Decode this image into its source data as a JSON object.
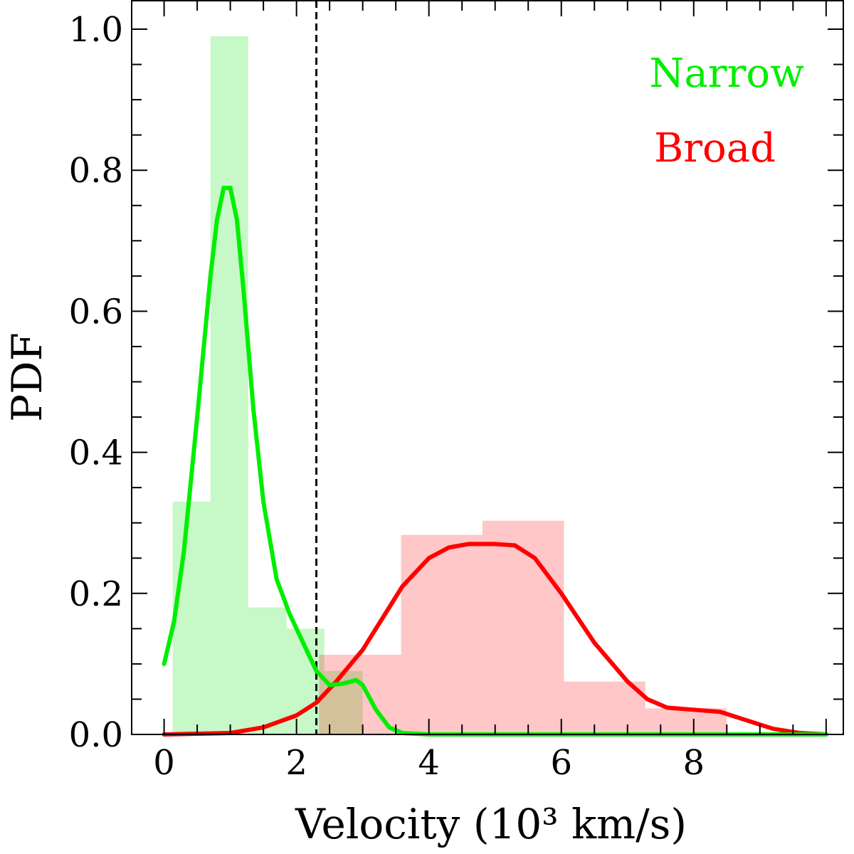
{
  "chart_data": {
    "type": "bar",
    "xlabel": "Velocity (10³ km/s)",
    "ylabel": "PDF",
    "xlim": [
      -0.49,
      10.26
    ],
    "ylim": [
      0,
      1.0
    ],
    "xticks": [
      0,
      2,
      4,
      6,
      8
    ],
    "xtick_labels": [
      "0",
      "2",
      "4",
      "6",
      "8"
    ],
    "yticks": [
      0,
      0.2,
      0.4,
      0.6,
      0.8,
      1.0
    ],
    "ytick_labels": [
      "0.0",
      "0.2",
      "0.4",
      "0.6",
      "0.8",
      "1.0"
    ],
    "grid": false,
    "legend_placement": "top-right",
    "threshold_line": {
      "x": 2.3,
      "style": "dashed",
      "color": "#000000"
    },
    "series": [
      {
        "name": "Narrow",
        "color": "#00ee00",
        "fill": "#c6f8c6",
        "histogram": {
          "bin_edges": [
            0.13,
            0.7,
            1.27,
            1.85,
            2.42,
            3.0
          ],
          "values": [
            0.33,
            0.99,
            0.18,
            0.15,
            0.09
          ]
        },
        "kde": {
          "x": [
            0,
            0.15,
            0.3,
            0.5,
            0.7,
            0.8,
            0.9,
            1.0,
            1.1,
            1.2,
            1.35,
            1.5,
            1.7,
            1.9,
            2.1,
            2.3,
            2.5,
            2.7,
            2.9,
            3.0,
            3.2,
            3.4,
            3.6,
            4.0,
            6.0,
            8.0,
            10.0
          ],
          "y": [
            0.1,
            0.16,
            0.26,
            0.45,
            0.65,
            0.73,
            0.775,
            0.775,
            0.73,
            0.63,
            0.46,
            0.33,
            0.22,
            0.17,
            0.13,
            0.09,
            0.07,
            0.072,
            0.077,
            0.07,
            0.035,
            0.01,
            0.002,
            0,
            0,
            0,
            0
          ]
        }
      },
      {
        "name": "Broad",
        "color": "#ff0000",
        "fill": "#ffc8c8",
        "histogram": {
          "bin_edges": [
            2.34,
            3.58,
            4.81,
            6.04,
            7.27,
            8.5
          ],
          "values": [
            0.113,
            0.283,
            0.303,
            0.075,
            0.037
          ]
        },
        "kde": {
          "x": [
            0,
            1,
            1.5,
            2,
            2.3,
            2.6,
            3,
            3.3,
            3.6,
            4,
            4.3,
            4.6,
            5,
            5.3,
            5.6,
            6,
            6.5,
            7,
            7.3,
            7.6,
            8,
            8.4,
            8.8,
            9.2,
            9.6,
            10
          ],
          "y": [
            0,
            0.002,
            0.01,
            0.027,
            0.045,
            0.075,
            0.12,
            0.165,
            0.21,
            0.25,
            0.265,
            0.27,
            0.27,
            0.268,
            0.25,
            0.2,
            0.13,
            0.075,
            0.05,
            0.038,
            0.035,
            0.032,
            0.02,
            0.008,
            0.002,
            0
          ]
        }
      }
    ]
  }
}
